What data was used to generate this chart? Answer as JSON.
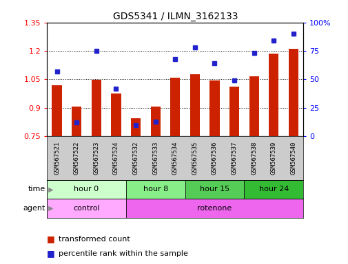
{
  "title": "GDS5341 / ILMN_3162133",
  "samples": [
    "GSM567521",
    "GSM567522",
    "GSM567523",
    "GSM567524",
    "GSM567532",
    "GSM567533",
    "GSM567534",
    "GSM567535",
    "GSM567536",
    "GSM567537",
    "GSM567538",
    "GSM567539",
    "GSM567540"
  ],
  "transformed_count": [
    1.02,
    0.905,
    1.048,
    0.975,
    0.845,
    0.905,
    1.06,
    1.075,
    1.045,
    1.01,
    1.065,
    1.185,
    1.21
  ],
  "percentile_rank": [
    57,
    12,
    75,
    42,
    10,
    13,
    68,
    78,
    64,
    49,
    73,
    84,
    90
  ],
  "ylim_left": [
    0.75,
    1.35
  ],
  "ylim_right": [
    0,
    100
  ],
  "yticks_left": [
    0.75,
    0.9,
    1.05,
    1.2,
    1.35
  ],
  "yticks_right": [
    0,
    25,
    50,
    75,
    100
  ],
  "ytick_labels_right": [
    "0",
    "25",
    "50",
    "75",
    "100%"
  ],
  "bar_color": "#cc2200",
  "dot_color": "#2222cc",
  "bar_bottom": 0.75,
  "time_groups": [
    {
      "label": "hour 0",
      "start": 0,
      "end": 4,
      "color": "#ccffcc"
    },
    {
      "label": "hour 8",
      "start": 4,
      "end": 7,
      "color": "#88ee88"
    },
    {
      "label": "hour 15",
      "start": 7,
      "end": 10,
      "color": "#55cc55"
    },
    {
      "label": "hour 24",
      "start": 10,
      "end": 13,
      "color": "#33bb33"
    }
  ],
  "agent_groups": [
    {
      "label": "control",
      "start": 0,
      "end": 4,
      "color": "#ffaaff"
    },
    {
      "label": "rotenone",
      "start": 4,
      "end": 13,
      "color": "#ee66ee"
    }
  ],
  "legend_red_label": "transformed count",
  "legend_blue_label": "percentile rank within the sample",
  "xlabel_time": "time",
  "xlabel_agent": "agent",
  "sample_bg": "#cccccc",
  "dotted_yticks": [
    0.9,
    1.05,
    1.2
  ]
}
